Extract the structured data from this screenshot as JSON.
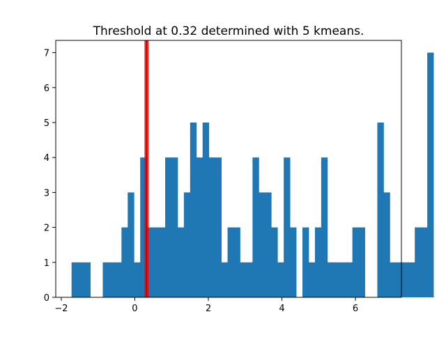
{
  "chart_data": {
    "type": "bar",
    "title": "Threshold at 0.32 determined with 5 kmeans.",
    "xlabel": "",
    "ylabel": "",
    "xlim": [
      -2.15,
      7.25
    ],
    "ylim": [
      0,
      7.35
    ],
    "xticks": [
      -2,
      0,
      2,
      4,
      6
    ],
    "yticks": [
      0,
      1,
      2,
      3,
      4,
      5,
      6,
      7
    ],
    "bin_start": -1.72,
    "bin_width": 0.1697,
    "counts": [
      1,
      1,
      1,
      0,
      0,
      1,
      1,
      1,
      2,
      3,
      1,
      4,
      2,
      2,
      2,
      4,
      4,
      2,
      3,
      5,
      4,
      5,
      4,
      4,
      1,
      2,
      2,
      1,
      1,
      4,
      3,
      3,
      2,
      1,
      4,
      2,
      0,
      2,
      1,
      2,
      4,
      1,
      1,
      1,
      1,
      2,
      2,
      0,
      0,
      5,
      3,
      1,
      1,
      1,
      1,
      2,
      2,
      7
    ],
    "bar_color": "#1f77b4",
    "threshold": {
      "value": 0.32,
      "color": "#ff0000"
    },
    "grid": false,
    "legend": "none"
  }
}
